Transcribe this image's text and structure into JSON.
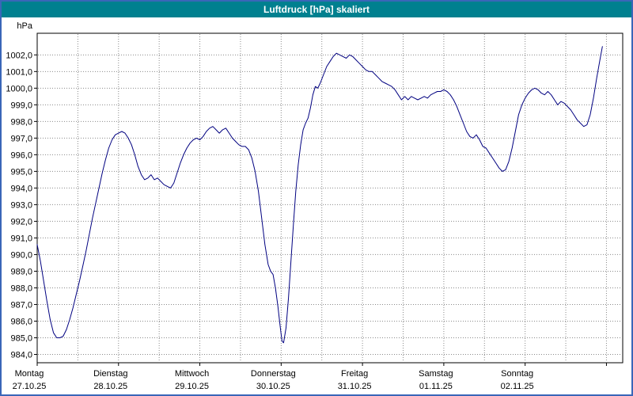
{
  "window": {
    "title": "Luftdruck [hPa] skaliert"
  },
  "colors": {
    "titlebar_bg": "#00808F",
    "titlebar_text": "#FFFFFF",
    "window_border": "#3A66B8",
    "window_bg": "#FFFFFF",
    "plot_bg": "#FFFFFF",
    "plot_frame": "#000000",
    "grid": "#8A8A8A",
    "line": "#000080",
    "axis_text": "#000000"
  },
  "chart_data": {
    "type": "line",
    "title": "Luftdruck [hPa] skaliert",
    "ylabel": "hPa",
    "xlabel": "",
    "legend_position": "none",
    "grid": true,
    "ylim": [
      983.5,
      1003.3
    ],
    "y_ticks": [
      984,
      985,
      986,
      987,
      988,
      989,
      990,
      991,
      992,
      993,
      994,
      995,
      996,
      997,
      998,
      999,
      1000,
      1001,
      1002
    ],
    "y_tick_labels": [
      "984,0",
      "985,0",
      "986,0",
      "987,0",
      "988,0",
      "989,0",
      "990,0",
      "991,0",
      "992,0",
      "993,0",
      "994,0",
      "995,0",
      "996,0",
      "997,0",
      "998,0",
      "999,0",
      "1000,0",
      "1001,0",
      "1002,0"
    ],
    "xlim_days": [
      0,
      7.2
    ],
    "grid_x_interval_days": 0.5,
    "x_ticks": [
      {
        "day": 0,
        "label": "Montag",
        "date": "27.10.25"
      },
      {
        "day": 1,
        "label": "Dienstag",
        "date": "28.10.25"
      },
      {
        "day": 2,
        "label": "Mittwoch",
        "date": "29.10.25"
      },
      {
        "day": 3,
        "label": "Donnerstag",
        "date": "30.10.25"
      },
      {
        "day": 4,
        "label": "Freitag",
        "date": "31.10.25"
      },
      {
        "day": 5,
        "label": "Samstag",
        "date": "01.11.25"
      },
      {
        "day": 6,
        "label": "Sonntag",
        "date": "02.11.25"
      }
    ],
    "series": [
      {
        "name": "Luftdruck",
        "unit": "hPa",
        "points": [
          [
            0.0,
            990.6
          ],
          [
            0.04,
            989.6
          ],
          [
            0.08,
            988.4
          ],
          [
            0.12,
            987.2
          ],
          [
            0.16,
            986.1
          ],
          [
            0.2,
            985.3
          ],
          [
            0.24,
            985.0
          ],
          [
            0.28,
            985.0
          ],
          [
            0.32,
            985.1
          ],
          [
            0.36,
            985.5
          ],
          [
            0.4,
            986.1
          ],
          [
            0.44,
            986.8
          ],
          [
            0.48,
            987.6
          ],
          [
            0.52,
            988.4
          ],
          [
            0.56,
            989.3
          ],
          [
            0.6,
            990.2
          ],
          [
            0.64,
            991.2
          ],
          [
            0.68,
            992.2
          ],
          [
            0.72,
            993.1
          ],
          [
            0.76,
            994.0
          ],
          [
            0.8,
            994.9
          ],
          [
            0.84,
            995.7
          ],
          [
            0.88,
            996.4
          ],
          [
            0.92,
            996.9
          ],
          [
            0.96,
            997.2
          ],
          [
            1.0,
            997.3
          ],
          [
            1.04,
            997.4
          ],
          [
            1.08,
            997.3
          ],
          [
            1.12,
            997.0
          ],
          [
            1.16,
            996.6
          ],
          [
            1.2,
            996.0
          ],
          [
            1.24,
            995.3
          ],
          [
            1.28,
            994.8
          ],
          [
            1.32,
            994.5
          ],
          [
            1.36,
            994.6
          ],
          [
            1.4,
            994.8
          ],
          [
            1.44,
            994.5
          ],
          [
            1.48,
            994.6
          ],
          [
            1.52,
            994.4
          ],
          [
            1.56,
            994.2
          ],
          [
            1.6,
            994.1
          ],
          [
            1.64,
            994.0
          ],
          [
            1.68,
            994.3
          ],
          [
            1.72,
            994.9
          ],
          [
            1.76,
            995.5
          ],
          [
            1.8,
            996.0
          ],
          [
            1.84,
            996.4
          ],
          [
            1.88,
            996.7
          ],
          [
            1.92,
            996.9
          ],
          [
            1.96,
            997.0
          ],
          [
            2.0,
            996.9
          ],
          [
            2.04,
            997.1
          ],
          [
            2.08,
            997.4
          ],
          [
            2.12,
            997.6
          ],
          [
            2.16,
            997.7
          ],
          [
            2.2,
            997.5
          ],
          [
            2.24,
            997.3
          ],
          [
            2.28,
            997.5
          ],
          [
            2.32,
            997.6
          ],
          [
            2.36,
            997.3
          ],
          [
            2.4,
            997.0
          ],
          [
            2.44,
            996.8
          ],
          [
            2.48,
            996.6
          ],
          [
            2.52,
            996.5
          ],
          [
            2.56,
            996.5
          ],
          [
            2.6,
            996.3
          ],
          [
            2.64,
            995.8
          ],
          [
            2.68,
            995.0
          ],
          [
            2.72,
            993.8
          ],
          [
            2.76,
            992.2
          ],
          [
            2.8,
            990.6
          ],
          [
            2.84,
            989.4
          ],
          [
            2.87,
            989.0
          ],
          [
            2.9,
            988.8
          ],
          [
            2.93,
            988.0
          ],
          [
            2.96,
            986.9
          ],
          [
            2.99,
            985.6
          ],
          [
            3.01,
            984.8
          ],
          [
            3.03,
            984.7
          ],
          [
            3.06,
            985.6
          ],
          [
            3.09,
            987.4
          ],
          [
            3.12,
            989.6
          ],
          [
            3.15,
            991.8
          ],
          [
            3.18,
            993.8
          ],
          [
            3.21,
            995.4
          ],
          [
            3.24,
            996.6
          ],
          [
            3.27,
            997.5
          ],
          [
            3.3,
            997.9
          ],
          [
            3.33,
            998.2
          ],
          [
            3.36,
            998.8
          ],
          [
            3.39,
            999.6
          ],
          [
            3.42,
            1000.1
          ],
          [
            3.45,
            1000.0
          ],
          [
            3.48,
            1000.3
          ],
          [
            3.52,
            1000.8
          ],
          [
            3.56,
            1001.3
          ],
          [
            3.6,
            1001.6
          ],
          [
            3.64,
            1001.9
          ],
          [
            3.68,
            1002.1
          ],
          [
            3.72,
            1002.0
          ],
          [
            3.76,
            1001.9
          ],
          [
            3.8,
            1001.8
          ],
          [
            3.84,
            1002.0
          ],
          [
            3.88,
            1001.9
          ],
          [
            3.92,
            1001.7
          ],
          [
            3.96,
            1001.5
          ],
          [
            4.0,
            1001.3
          ],
          [
            4.04,
            1001.1
          ],
          [
            4.08,
            1001.0
          ],
          [
            4.12,
            1001.0
          ],
          [
            4.16,
            1000.8
          ],
          [
            4.2,
            1000.6
          ],
          [
            4.24,
            1000.4
          ],
          [
            4.28,
            1000.3
          ],
          [
            4.32,
            1000.2
          ],
          [
            4.36,
            1000.1
          ],
          [
            4.4,
            999.9
          ],
          [
            4.44,
            999.6
          ],
          [
            4.48,
            999.3
          ],
          [
            4.52,
            999.5
          ],
          [
            4.56,
            999.3
          ],
          [
            4.6,
            999.5
          ],
          [
            4.64,
            999.4
          ],
          [
            4.68,
            999.3
          ],
          [
            4.72,
            999.4
          ],
          [
            4.76,
            999.5
          ],
          [
            4.8,
            999.4
          ],
          [
            4.84,
            999.6
          ],
          [
            4.88,
            999.7
          ],
          [
            4.92,
            999.8
          ],
          [
            4.96,
            999.8
          ],
          [
            5.0,
            999.9
          ],
          [
            5.04,
            999.8
          ],
          [
            5.08,
            999.6
          ],
          [
            5.12,
            999.3
          ],
          [
            5.16,
            998.9
          ],
          [
            5.2,
            998.4
          ],
          [
            5.24,
            997.9
          ],
          [
            5.28,
            997.4
          ],
          [
            5.32,
            997.1
          ],
          [
            5.36,
            997.0
          ],
          [
            5.4,
            997.2
          ],
          [
            5.44,
            996.9
          ],
          [
            5.48,
            996.5
          ],
          [
            5.52,
            996.4
          ],
          [
            5.56,
            996.1
          ],
          [
            5.6,
            995.8
          ],
          [
            5.64,
            995.5
          ],
          [
            5.68,
            995.2
          ],
          [
            5.72,
            995.0
          ],
          [
            5.76,
            995.1
          ],
          [
            5.8,
            995.6
          ],
          [
            5.84,
            996.4
          ],
          [
            5.88,
            997.4
          ],
          [
            5.92,
            998.4
          ],
          [
            5.96,
            999.0
          ],
          [
            6.0,
            999.4
          ],
          [
            6.04,
            999.7
          ],
          [
            6.08,
            999.9
          ],
          [
            6.12,
            1000.0
          ],
          [
            6.16,
            999.9
          ],
          [
            6.2,
            999.7
          ],
          [
            6.24,
            999.6
          ],
          [
            6.28,
            999.8
          ],
          [
            6.32,
            999.6
          ],
          [
            6.36,
            999.3
          ],
          [
            6.4,
            999.0
          ],
          [
            6.44,
            999.2
          ],
          [
            6.48,
            999.1
          ],
          [
            6.52,
            998.9
          ],
          [
            6.56,
            998.7
          ],
          [
            6.6,
            998.4
          ],
          [
            6.64,
            998.1
          ],
          [
            6.68,
            997.9
          ],
          [
            6.72,
            997.7
          ],
          [
            6.76,
            997.8
          ],
          [
            6.8,
            998.4
          ],
          [
            6.84,
            999.4
          ],
          [
            6.88,
            1000.6
          ],
          [
            6.92,
            1001.7
          ],
          [
            6.95,
            1002.5
          ]
        ]
      }
    ]
  }
}
